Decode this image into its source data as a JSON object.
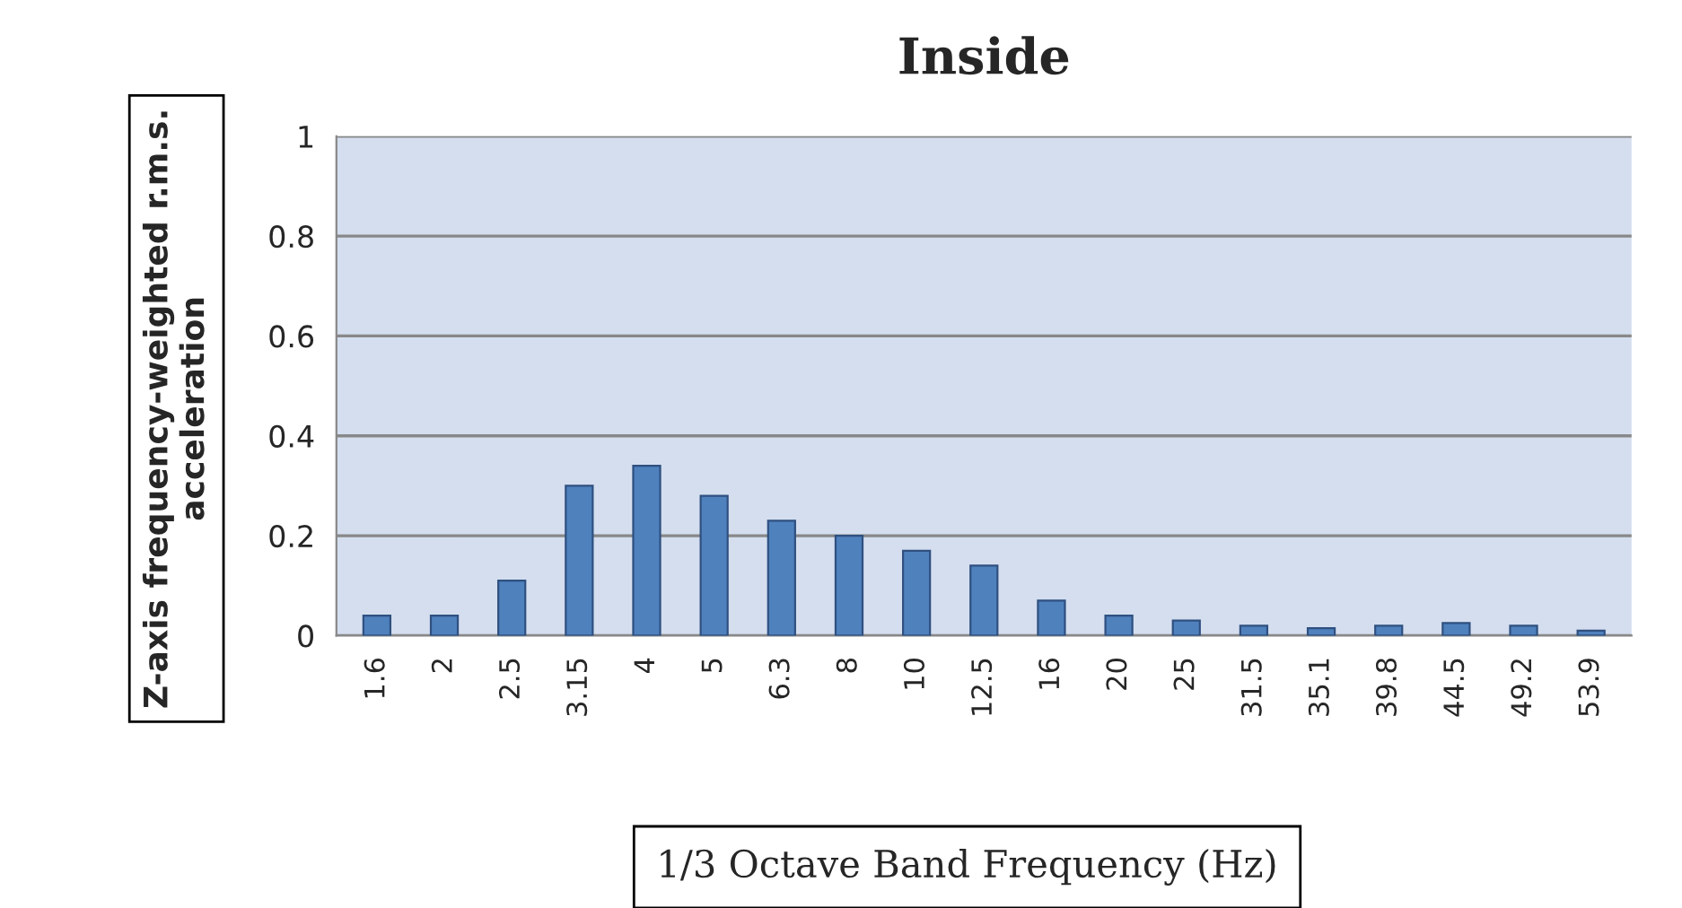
{
  "chart_data": {
    "type": "bar",
    "title": "Inside",
    "xlabel": "1/3 Octave Band Frequency (Hz)",
    "ylabel": "Z-axis frequency-weighted r.m.s. acceleration",
    "categories": [
      "1.6",
      "2",
      "2.5",
      "3.15",
      "4",
      "5",
      "6.3",
      "8",
      "10",
      "12.5",
      "16",
      "20",
      "25",
      "31.5",
      "35.1",
      "39.8",
      "44.5",
      "49.2",
      "53.9"
    ],
    "values": [
      0.04,
      0.04,
      0.11,
      0.3,
      0.34,
      0.28,
      0.23,
      0.2,
      0.17,
      0.14,
      0.07,
      0.04,
      0.03,
      0.02,
      0.015,
      0.02,
      0.025,
      0.02,
      0.01
    ],
    "color": "#4f81bd",
    "ylim": [
      0,
      1
    ],
    "yticks": [
      0,
      0.2,
      0.4,
      0.6,
      0.8,
      1
    ],
    "grid": "y",
    "legend": false
  }
}
